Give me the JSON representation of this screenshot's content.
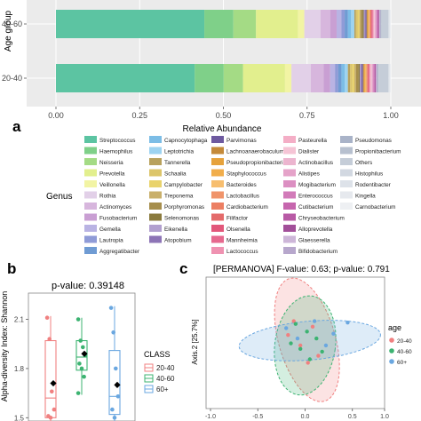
{
  "panel_labels": {
    "a": "a",
    "b": "b",
    "c": "c"
  },
  "colors": {
    "Streptococcus": "#5cc4a2",
    "Haemophilus": "#7fd089",
    "Neisseria": "#a4db85",
    "Prevotella": "#e2ef8e",
    "Veillonella": "#f2f4a4",
    "Rothia": "#e2d0e8",
    "Actinomyces": "#d7b6dd",
    "Fusobacterium": "#c99fd3",
    "Gemella": "#b9b3e3",
    "Lautropia": "#8f9bd7",
    "Aggregatibacter": "#6f9bd3",
    "Capnocytophaga": "#7cbde6",
    "Leptotrichia": "#9dd3f1",
    "Tannerella": "#b8a15c",
    "Schaalia": "#dcc56a",
    "Campylobacter": "#e9d36c",
    "Treponema": "#c9b06b",
    "Porphyromonas": "#a68e4c",
    "Selenomonas": "#8a7a3d",
    "Eikenella": "#b2a0cf",
    "Atopobium": "#8d74b6",
    "Parvimonas": "#6e5aa0",
    "Lachnoanaerobaculum": "#c48a3a",
    "Pseudopropionibacterium": "#e6a23c",
    "Staphylococcus": "#f1ae4c",
    "Bacteroides": "#f7be6f",
    "Lactobacillus": "#f0946b",
    "Cardiobacterium": "#ec7f63",
    "Filifactor": "#e46b6b",
    "Olsenella": "#e2577a",
    "Mannheimia": "#e6698e",
    "Lactococcus": "#ef92b1",
    "Pasteurella": "#f4aec6",
    "Dialister": "#f5c4d5",
    "Actinobacillus": "#ecb5cf",
    "Alistipes": "#e5a3c9",
    "Mogibacterium": "#dc8fc2",
    "Enterococcus": "#d27bb9",
    "Cutibacterium": "#c666ae",
    "Chryseobacterium": "#b85aa5",
    "Alloprevotella": "#a24f99",
    "Glaesserella": "#cdb6d8",
    "Bifidobacterium": "#b7a7cc",
    "Pseudomonas": "#a9b3c8",
    "Propionibacterium": "#b7c0cf",
    "Others": "#c5cdd8",
    "Histophilus": "#d2d8e1",
    "Rodentibacter": "#dde2e9",
    "Kingella": "#e6e9ee",
    "Carnobacterium": "#eef0f3",
    "group_20_40": "#f08080",
    "group_40_60": "#3cb371",
    "group_60_plus": "#6aa7e0",
    "diamond": "#000000",
    "panel_bg": "#ebebeb"
  },
  "chart_data": [
    {
      "type": "bar",
      "orientation": "horizontal-stacked",
      "ylabel": "Age group",
      "xlabel": "Relative Abundance",
      "xlim": [
        0,
        1
      ],
      "x_ticks": [
        "0.00",
        "0.25",
        "0.50",
        "0.75",
        "1.00"
      ],
      "categories": [
        "40-60",
        "20-40"
      ],
      "legend_title": "Genus",
      "legend_columns": [
        [
          "Streptococcus",
          "Haemophilus",
          "Neisseria",
          "Prevotella",
          "Veillonella",
          "Rothia",
          "Actinomyces",
          "Fusobacterium",
          "Gemella",
          "Lautropia",
          "Aggregatibacter"
        ],
        [
          "Capnocytophaga",
          "Leptotrichia",
          "Tannerella",
          "Schaalia",
          "Campylobacter",
          "Treponema",
          "Porphyromonas",
          "Selenomonas",
          "Eikenella",
          "Atopobium"
        ],
        [
          "Parvimonas",
          "Lachnoanaerobaculum",
          "Pseudopropionibacterium",
          "Staphylococcus",
          "Bacteroides",
          "Lactobacillus",
          "Cardiobacterium",
          "Filifactor",
          "Olsenella",
          "Mannheimia",
          "Lactococcus"
        ],
        [
          "Pasteurella",
          "Dialister",
          "Actinobacillus",
          "Alistipes",
          "Mogibacterium",
          "Enterococcus",
          "Cutibacterium",
          "Chryseobacterium",
          "Alloprevotella",
          "Glaesserella",
          "Bifidobacterium"
        ],
        [
          "Pseudomonas",
          "Propionibacterium",
          "Others",
          "Histophilus",
          "Rodentibacter",
          "Kingella",
          "Carnobacterium"
        ]
      ],
      "series": [
        {
          "name": "Streptococcus",
          "values": [
            0.46,
            0.43
          ]
        },
        {
          "name": "Haemophilus",
          "values": [
            0.09,
            0.09
          ]
        },
        {
          "name": "Neisseria",
          "values": [
            0.07,
            0.06
          ]
        },
        {
          "name": "Prevotella",
          "values": [
            0.13,
            0.13
          ]
        },
        {
          "name": "Veillonella",
          "values": [
            0.02,
            0.02
          ]
        },
        {
          "name": "Rothia",
          "values": [
            0.05,
            0.06
          ]
        },
        {
          "name": "Actinomyces",
          "values": [
            0.03,
            0.04
          ]
        },
        {
          "name": "Fusobacterium",
          "values": [
            0.02,
            0.02
          ]
        },
        {
          "name": "Gemella",
          "values": [
            0.015,
            0.015
          ]
        },
        {
          "name": "Lautropia",
          "values": [
            0.01,
            0.01
          ]
        },
        {
          "name": "Aggregatibacter",
          "values": [
            0.01,
            0.01
          ]
        },
        {
          "name": "Capnocytophaga",
          "values": [
            0.01,
            0.01
          ]
        },
        {
          "name": "Leptotrichia",
          "values": [
            0.01,
            0.01
          ]
        },
        {
          "name": "Tannerella",
          "values": [
            0.005,
            0.007
          ]
        },
        {
          "name": "Schaalia",
          "values": [
            0.006,
            0.007
          ]
        },
        {
          "name": "Campylobacter",
          "values": [
            0.005,
            0.006
          ]
        },
        {
          "name": "Treponema",
          "values": [
            0.004,
            0.005
          ]
        },
        {
          "name": "Porphyromonas",
          "values": [
            0.006,
            0.008
          ]
        },
        {
          "name": "Selenomonas",
          "values": [
            0.003,
            0.004
          ]
        },
        {
          "name": "Eikenella",
          "values": [
            0.003,
            0.003
          ]
        },
        {
          "name": "Atopobium",
          "values": [
            0.003,
            0.003
          ]
        },
        {
          "name": "Parvimonas",
          "values": [
            0.003,
            0.004
          ]
        },
        {
          "name": "Lachnoanaerobaculum",
          "values": [
            0.003,
            0.003
          ]
        },
        {
          "name": "Pseudopropionibacterium",
          "values": [
            0.002,
            0.002
          ]
        },
        {
          "name": "Staphylococcus",
          "values": [
            0.002,
            0.003
          ]
        },
        {
          "name": "Bacteroides",
          "values": [
            0.002,
            0.002
          ]
        },
        {
          "name": "Lactobacillus",
          "values": [
            0.002,
            0.002
          ]
        },
        {
          "name": "Cardiobacterium",
          "values": [
            0.002,
            0.002
          ]
        },
        {
          "name": "Filifactor",
          "values": [
            0.002,
            0.002
          ]
        },
        {
          "name": "Olsenella",
          "values": [
            0.002,
            0.002
          ]
        },
        {
          "name": "Mannheimia",
          "values": [
            0.002,
            0.002
          ]
        },
        {
          "name": "Lactococcus",
          "values": [
            0.002,
            0.002
          ]
        },
        {
          "name": "Pasteurella",
          "values": [
            0.002,
            0.002
          ]
        },
        {
          "name": "Dialister",
          "values": [
            0.002,
            0.002
          ]
        },
        {
          "name": "Actinobacillus",
          "values": [
            0.002,
            0.002
          ]
        },
        {
          "name": "Alistipes",
          "values": [
            0.002,
            0.002
          ]
        },
        {
          "name": "Mogibacterium",
          "values": [
            0.002,
            0.002
          ]
        },
        {
          "name": "Enterococcus",
          "values": [
            0.002,
            0.002
          ]
        },
        {
          "name": "Cutibacterium",
          "values": [
            0.002,
            0.002
          ]
        },
        {
          "name": "Chryseobacterium",
          "values": [
            0.002,
            0.002
          ]
        },
        {
          "name": "Alloprevotella",
          "values": [
            0.002,
            0.002
          ]
        },
        {
          "name": "Glaesserella",
          "values": [
            0.002,
            0.002
          ]
        },
        {
          "name": "Bifidobacterium",
          "values": [
            0.002,
            0.002
          ]
        },
        {
          "name": "Pseudomonas",
          "values": [
            0.002,
            0.002
          ]
        },
        {
          "name": "Propionibacterium",
          "values": [
            0.002,
            0.002
          ]
        },
        {
          "name": "Others",
          "values": [
            0.02,
            0.03
          ]
        },
        {
          "name": "Histophilus",
          "values": [
            0.002,
            0.002
          ]
        },
        {
          "name": "Rodentibacter",
          "values": [
            0.002,
            0.002
          ]
        },
        {
          "name": "Kingella",
          "values": [
            0.002,
            0.002
          ]
        },
        {
          "name": "Carnobacterium",
          "values": [
            0.002,
            0.002
          ]
        }
      ],
      "grid": true
    },
    {
      "type": "box",
      "title": "p-value: 0.39148",
      "ylabel": "Alpha-diversity Index: Shannon",
      "ylim": [
        1.48,
        2.26
      ],
      "y_ticks": [
        "1.5",
        "1.8",
        "2.1"
      ],
      "legend_title": "CLASS",
      "categories": [
        "20-40",
        "40-60",
        "60+"
      ],
      "boxes": [
        {
          "name": "20-40",
          "q1": 1.5,
          "median": 1.62,
          "q3": 1.97,
          "whisker_low": 1.48,
          "whisker_high": 2.12,
          "mean": 1.71,
          "points": [
            2.11,
            1.98,
            1.66,
            1.55,
            1.51,
            1.5
          ]
        },
        {
          "name": "40-60",
          "q1": 1.79,
          "median": 1.87,
          "q3": 1.97,
          "whisker_low": 1.64,
          "whisker_high": 2.11,
          "mean": 1.89,
          "points": [
            2.1,
            1.97,
            1.93,
            1.88,
            1.83,
            1.8,
            1.75,
            1.65
          ]
        },
        {
          "name": "60+",
          "q1": 1.52,
          "median": 1.63,
          "q3": 1.91,
          "whisker_low": 1.48,
          "whisker_high": 2.18,
          "mean": 1.7,
          "points": [
            2.17,
            2.02,
            1.8,
            1.63,
            1.55,
            1.5
          ]
        }
      ]
    },
    {
      "type": "scatter",
      "title": "[PERMANOVA]  F-value: 0.63; p-value: 0.791",
      "ylabel": "Axis.2  [25.7%]",
      "xlim": [
        -1.0,
        1.0
      ],
      "x_ticks": [
        "-1.0",
        "-0.5",
        "0.0",
        "0.5",
        "1.0"
      ],
      "legend_title": "age",
      "series": [
        {
          "name": "20-40",
          "ellipse": {
            "cx": 0.02,
            "cy": 0.03,
            "rx": 0.3,
            "ry": 0.92,
            "angle": -16
          },
          "points": [
            [
              -0.18,
              0.1
            ],
            [
              -0.05,
              -0.05
            ],
            [
              0.08,
              0.22
            ],
            [
              0.14,
              -0.2
            ],
            [
              -0.12,
              0.3
            ],
            [
              0.03,
              -0.3
            ]
          ]
        },
        {
          "name": "40-60",
          "ellipse": {
            "cx": 0.0,
            "cy": -0.05,
            "rx": 0.32,
            "ry": 0.72,
            "angle": 8
          },
          "points": [
            [
              -0.1,
              0.26
            ],
            [
              0.02,
              0.15
            ],
            [
              0.12,
              0.05
            ],
            [
              -0.05,
              -0.1
            ],
            [
              0.18,
              -0.14
            ],
            [
              0.05,
              -0.25
            ],
            [
              -0.15,
              -0.02
            ]
          ]
        },
        {
          "name": "60+",
          "ellipse": {
            "cx": 0.05,
            "cy": 0.02,
            "rx": 0.75,
            "ry": 0.28,
            "angle": -5
          },
          "points": [
            [
              -0.2,
              0.2
            ],
            [
              0.1,
              0.3
            ],
            [
              0.3,
              0.12
            ],
            [
              0.45,
              0.28
            ],
            [
              0.22,
              -0.05
            ],
            [
              -0.08,
              0.05
            ]
          ]
        }
      ]
    }
  ]
}
